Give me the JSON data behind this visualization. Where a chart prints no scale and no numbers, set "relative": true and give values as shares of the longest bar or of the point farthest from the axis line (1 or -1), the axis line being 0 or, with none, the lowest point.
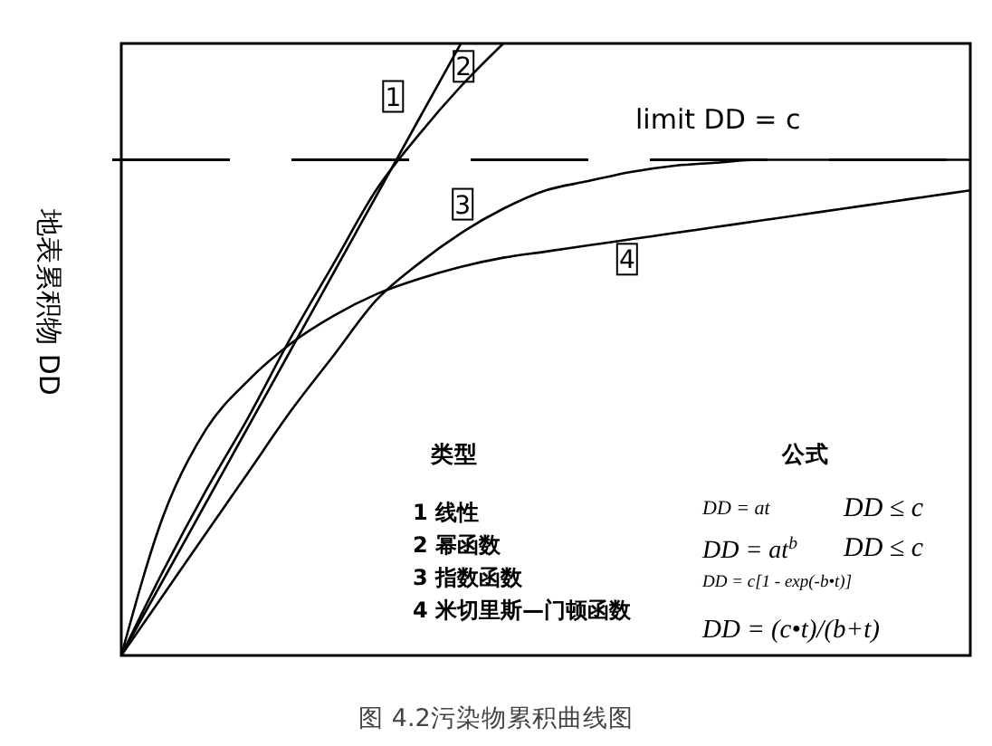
{
  "chart_data": {
    "type": "line",
    "relative": true,
    "ylabel": "地表累积物 DD",
    "categories": [
      null,
      null,
      null,
      null,
      null,
      null,
      null,
      null,
      null,
      null,
      null,
      null,
      null,
      null,
      null,
      null,
      null,
      null,
      null,
      null,
      null
    ],
    "series": [
      {
        "name": "1",
        "color": "#000000",
        "values": [
          0,
          0.125,
          0.25,
          0.375,
          0.5,
          0.625,
          0.75,
          0.875,
          1,
          null,
          null,
          null,
          null,
          null,
          null,
          null,
          null,
          null,
          null,
          null,
          null
        ]
      },
      {
        "name": "2",
        "color": "#000000",
        "values": [
          0,
          0.14,
          0.27,
          0.39,
          0.52,
          0.64,
          0.76,
          0.85,
          0.93,
          1,
          null,
          null,
          null,
          null,
          null,
          null,
          null,
          null,
          null,
          null,
          null
        ]
      },
      {
        "name": "3",
        "color": "#000000",
        "values": [
          0,
          0.1,
          0.2,
          0.3,
          0.4,
          0.49,
          0.58,
          0.64,
          0.69,
          0.73,
          0.76,
          0.775,
          0.79,
          0.8,
          0.805,
          0.81,
          0.81,
          0.81,
          0.81,
          0.81,
          0.81
        ]
      },
      {
        "name": "4",
        "color": "#000000",
        "values": [
          0,
          0.23,
          0.37,
          0.45,
          0.51,
          0.555,
          0.59,
          0.615,
          0.635,
          0.65,
          0.66,
          0.67,
          0.68,
          0.69,
          0.7,
          0.71,
          0.72,
          0.73,
          0.74,
          0.75,
          0.76
        ]
      }
    ],
    "ref_lines": [
      {
        "axis": "y",
        "value": 0.81,
        "label": "limit DD = c",
        "color": "#000000",
        "line_style": "dashed"
      }
    ],
    "annotations": [
      "类型",
      "公式",
      "1 线性",
      "DD = at",
      "DD ≤ c",
      "2 幂函数",
      "DD = at$^{b}$",
      "DD ≤ c",
      "3 指数函数",
      "DD = c[1 - exp(-b•t)]",
      "4 米切里斯—门顿函数",
      "DD = (c•t)/(b+t)",
      "图 4.2污染物累积曲线图"
    ]
  }
}
